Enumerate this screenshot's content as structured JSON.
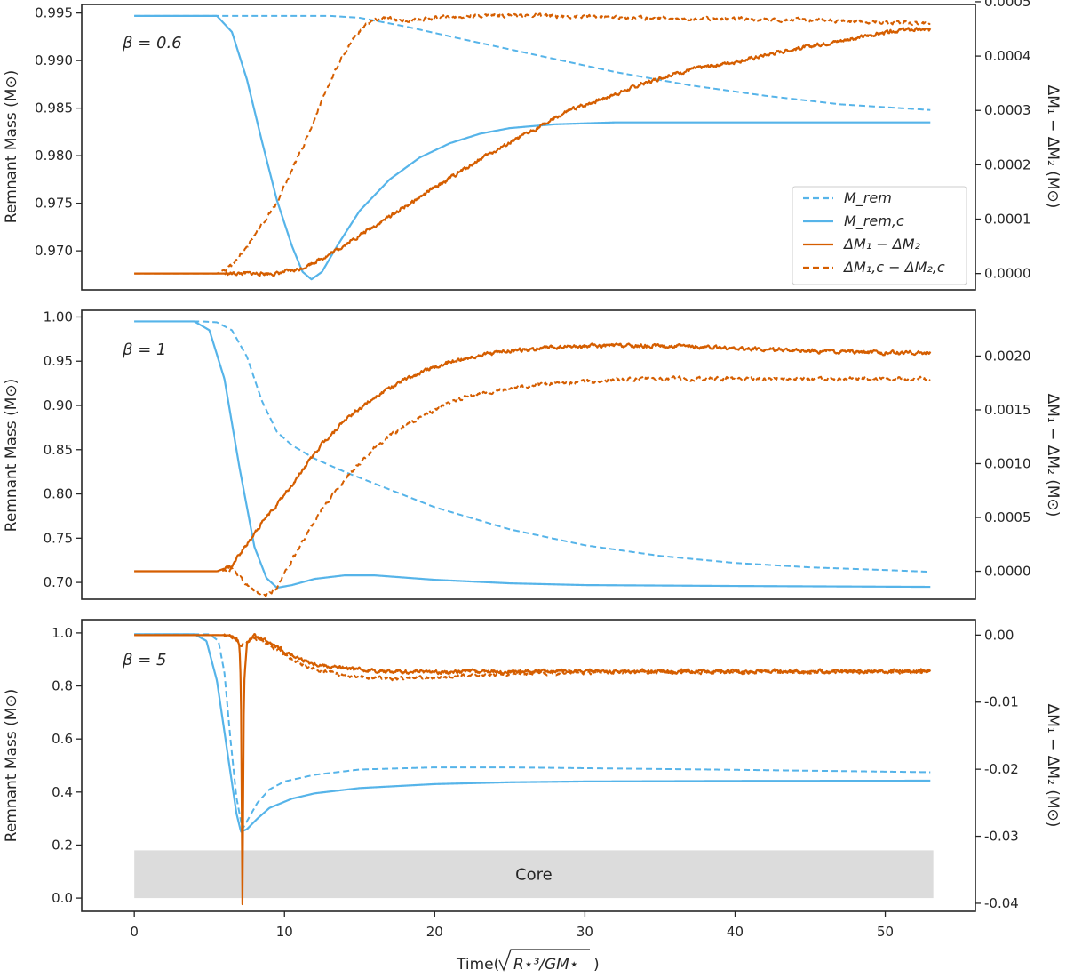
{
  "figure": {
    "xlabel": "Time(√ R⋆³/GM⋆ )",
    "xlabel_parts": {
      "prefix": "Time(",
      "radicand": "R⋆³/GM⋆",
      "suffix": ")"
    },
    "colors": {
      "blue": "#56B4E9",
      "orange": "#D55E00",
      "core": "#DCDCDC",
      "axis": "#262626"
    }
  },
  "chart_data": [
    {
      "type": "line",
      "panel": "beta-0.6",
      "annotation": "β = 0.6",
      "ylabel": "Remnant Mass (M⊙)",
      "ylabel_right": "ΔM₁ − ΔM₂ (M⊙)",
      "xlim": [
        -3.5,
        56
      ],
      "ylim": [
        0.9659,
        0.9959
      ],
      "ylim_right": [
        -3e-05,
        0.000495
      ],
      "yticks": [
        0.97,
        0.975,
        0.98,
        0.985,
        0.99,
        0.995
      ],
      "ytick_labels": [
        "0.970",
        "0.975",
        "0.980",
        "0.985",
        "0.990",
        "0.995"
      ],
      "yticks_right": [
        0.0,
        0.0001,
        0.0002,
        0.0003,
        0.0004,
        0.0005
      ],
      "ytick_right_labels": [
        "0.0000",
        "0.0001",
        "0.0002",
        "0.0003",
        "0.0004",
        "0.0005"
      ],
      "legend": {
        "placement": "right",
        "entries": [
          "M_rem",
          "M_rem,c",
          "ΔM₁ − ΔM₂",
          "ΔM₁,c − ΔM₂,c"
        ]
      },
      "series": [
        {
          "name": "M_rem",
          "axis": "left",
          "color": "#56B4E9",
          "dash": true,
          "x": [
            0,
            5,
            10,
            13,
            15,
            18,
            22,
            27,
            32,
            37,
            42,
            47,
            53
          ],
          "y": [
            0.9947,
            0.9947,
            0.9947,
            0.9947,
            0.9945,
            0.9936,
            0.9922,
            0.9905,
            0.9888,
            0.9874,
            0.9863,
            0.9854,
            0.9848
          ]
        },
        {
          "name": "M_rem,c",
          "axis": "left",
          "color": "#56B4E9",
          "dash": false,
          "x": [
            0,
            5.5,
            6.5,
            7.5,
            8.5,
            9.5,
            10.5,
            11.2,
            11.8,
            12.5,
            13.5,
            15,
            17,
            19,
            21,
            23,
            25,
            28,
            32,
            40,
            53
          ],
          "y": [
            0.9947,
            0.9947,
            0.993,
            0.988,
            0.9815,
            0.9753,
            0.9705,
            0.9678,
            0.967,
            0.9678,
            0.9705,
            0.9742,
            0.9775,
            0.9798,
            0.9813,
            0.9823,
            0.9829,
            0.9833,
            0.9835,
            0.9835,
            0.9835
          ]
        },
        {
          "name": "ΔM₁ − ΔM₂",
          "axis": "right",
          "color": "#D55E00",
          "dash": false,
          "x": [
            0,
            9.5,
            11,
            13,
            15,
            17,
            19,
            21,
            23,
            25,
            27,
            29,
            31,
            33,
            35,
            37,
            39,
            41,
            43,
            45,
            47,
            49,
            51,
            53
          ],
          "y": [
            0.0,
            0.0,
            8e-06,
            3.5e-05,
            7e-05,
            0.000105,
            0.00014,
            0.000175,
            0.00021,
            0.00024,
            0.00027,
            0.0003,
            0.00032,
            0.00034,
            0.00036,
            0.000375,
            0.000385,
            0.000395,
            0.000408,
            0.000418,
            0.000428,
            0.000438,
            0.000448,
            0.000448
          ]
        },
        {
          "name": "ΔM₁,c − ΔM₂,c",
          "axis": "right",
          "color": "#D55E00",
          "dash": true,
          "x": [
            0,
            5.5,
            6.5,
            7.5,
            8.5,
            9.5,
            10.5,
            11.5,
            12.5,
            13.5,
            14.5,
            15.5,
            16.5,
            18,
            20,
            23,
            26,
            30,
            35,
            40,
            45,
            50,
            53
          ],
          "y": [
            0.0,
            0.0,
            1.5e-05,
            5e-05,
            9e-05,
            0.00013,
            0.00019,
            0.00025,
            0.00032,
            0.00038,
            0.00043,
            0.00046,
            0.00047,
            0.000465,
            0.00047,
            0.000475,
            0.000475,
            0.000472,
            0.00047,
            0.000468,
            0.000466,
            0.000463,
            0.00046
          ]
        }
      ]
    },
    {
      "type": "line",
      "panel": "beta-1",
      "annotation": "β = 1",
      "ylabel": "Remnant Mass (M⊙)",
      "ylabel_right": "ΔM₁ − ΔM₂ (M⊙)",
      "xlim": [
        -3.5,
        56
      ],
      "ylim": [
        0.681,
        1.0075
      ],
      "ylim_right": [
        -0.00026,
        0.002425
      ],
      "yticks": [
        0.7,
        0.75,
        0.8,
        0.85,
        0.9,
        0.95,
        1.0
      ],
      "ytick_labels": [
        "0.70",
        "0.75",
        "0.80",
        "0.85",
        "0.90",
        "0.95",
        "1.00"
      ],
      "yticks_right": [
        0.0,
        0.0005,
        0.001,
        0.0015,
        0.002
      ],
      "ytick_right_labels": [
        "0.0000",
        "0.0005",
        "0.0010",
        "0.0015",
        "0.0020"
      ],
      "series": [
        {
          "name": "M_rem",
          "axis": "left",
          "color": "#56B4E9",
          "dash": true,
          "x": [
            0,
            4.5,
            5.5,
            6.5,
            7.5,
            8.5,
            9.5,
            10.5,
            12,
            14,
            17,
            20,
            25,
            30,
            35,
            40,
            45,
            50,
            53
          ],
          "y": [
            0.995,
            0.995,
            0.994,
            0.985,
            0.955,
            0.905,
            0.87,
            0.855,
            0.84,
            0.825,
            0.805,
            0.785,
            0.76,
            0.742,
            0.73,
            0.722,
            0.717,
            0.714,
            0.712
          ]
        },
        {
          "name": "M_rem,c",
          "axis": "left",
          "color": "#56B4E9",
          "dash": false,
          "x": [
            0,
            4,
            5,
            6,
            7,
            8,
            8.8,
            9.5,
            10.5,
            12,
            14,
            16,
            20,
            25,
            30,
            40,
            53
          ],
          "y": [
            0.995,
            0.995,
            0.985,
            0.93,
            0.83,
            0.74,
            0.705,
            0.694,
            0.697,
            0.704,
            0.708,
            0.708,
            0.703,
            0.699,
            0.697,
            0.696,
            0.695
          ]
        },
        {
          "name": "ΔM₁ − ΔM₂",
          "axis": "right",
          "color": "#D55E00",
          "dash": false,
          "x": [
            0,
            5.5,
            6.5,
            7.5,
            8.5,
            9.5,
            10.5,
            11.5,
            12.5,
            14,
            16,
            18,
            20,
            22,
            25,
            28,
            32,
            36,
            40,
            45,
            50,
            53
          ],
          "y": [
            0.0,
            0.0,
            5e-05,
            0.00025,
            0.00045,
            0.00062,
            0.0008,
            0.001,
            0.00118,
            0.0014,
            0.00162,
            0.00178,
            0.0019,
            0.00198,
            0.00205,
            0.00208,
            0.0021,
            0.00209,
            0.00207,
            0.00205,
            0.00203,
            0.00203
          ]
        },
        {
          "name": "ΔM₁,c − ΔM₂,c",
          "axis": "right",
          "color": "#D55E00",
          "dash": true,
          "x": [
            0,
            5.5,
            6.5,
            7.5,
            8.3,
            8.8,
            9.5,
            10.5,
            11.5,
            12.5,
            14,
            16,
            18,
            20,
            22,
            25,
            28,
            32,
            36,
            40,
            45,
            50,
            53
          ],
          "y": [
            0.0,
            0.0,
            1.5e-05,
            -0.00012,
            -0.00022,
            -0.00023,
            -0.00015,
            0.0001,
            0.00035,
            0.00058,
            0.00085,
            0.00115,
            0.00135,
            0.0015,
            0.00162,
            0.0017,
            0.00175,
            0.00178,
            0.00179,
            0.00179,
            0.00179,
            0.00179,
            0.00179
          ]
        }
      ]
    },
    {
      "type": "line",
      "panel": "beta-5",
      "annotation": "β = 5",
      "core_label": "Core",
      "core_region": {
        "x": [
          0,
          53.2
        ],
        "y": [
          0.0,
          0.18
        ]
      },
      "ylabel": "Remnant Mass (M⊙)",
      "ylabel_right": "ΔM₁ − ΔM₂ (M⊙)",
      "xlim": [
        -3.5,
        56
      ],
      "ylim": [
        -0.05,
        1.05
      ],
      "ylim_right": [
        -0.0412,
        0.0023
      ],
      "yticks": [
        0.0,
        0.2,
        0.4,
        0.6,
        0.8,
        1.0
      ],
      "ytick_labels": [
        "0.0",
        "0.2",
        "0.4",
        "0.6",
        "0.8",
        "1.0"
      ],
      "yticks_right": [
        0.0,
        -0.01,
        -0.02,
        -0.03,
        -0.04
      ],
      "ytick_right_labels": [
        "0.00",
        "-0.01",
        "-0.02",
        "-0.03",
        "-0.04"
      ],
      "xticks": [
        0,
        10,
        20,
        30,
        40,
        50
      ],
      "xtick_labels": [
        "0",
        "10",
        "20",
        "30",
        "40",
        "50"
      ],
      "series": [
        {
          "name": "M_rem",
          "axis": "left",
          "color": "#56B4E9",
          "dash": true,
          "x": [
            0,
            5,
            5.6,
            6.0,
            6.4,
            6.8,
            7.2,
            7.6,
            8.2,
            9,
            10,
            12,
            15,
            20,
            25,
            30,
            40,
            53
          ],
          "y": [
            0.995,
            0.995,
            0.97,
            0.85,
            0.6,
            0.38,
            0.26,
            0.3,
            0.36,
            0.41,
            0.44,
            0.465,
            0.485,
            0.493,
            0.493,
            0.49,
            0.484,
            0.475
          ]
        },
        {
          "name": "M_rem,c",
          "axis": "left",
          "color": "#56B4E9",
          "dash": false,
          "x": [
            0,
            4,
            4.8,
            5.5,
            6.2,
            6.8,
            7.1,
            7.5,
            8.2,
            9,
            10.5,
            12,
            15,
            20,
            25,
            30,
            40,
            53
          ],
          "y": [
            0.995,
            0.995,
            0.97,
            0.82,
            0.55,
            0.32,
            0.25,
            0.26,
            0.3,
            0.34,
            0.375,
            0.395,
            0.415,
            0.43,
            0.437,
            0.44,
            0.442,
            0.443
          ]
        },
        {
          "name": "ΔM₁ − ΔM₂",
          "axis": "right",
          "color": "#D55E00",
          "dash": false,
          "x": [
            0,
            6.3,
            6.8,
            7.0,
            7.1,
            7.2,
            7.3,
            7.5,
            8,
            9,
            10,
            11,
            12,
            14,
            17,
            20,
            25,
            30,
            40,
            53
          ],
          "y": [
            0.0,
            0.0,
            -0.0005,
            -0.0015,
            -0.008,
            -0.0405,
            -0.008,
            -0.001,
            -0.0002,
            -0.0012,
            -0.0025,
            -0.0035,
            -0.0043,
            -0.005,
            -0.0054,
            -0.0055,
            -0.0054,
            -0.0054,
            -0.0054,
            -0.0054
          ]
        },
        {
          "name": "ΔM₁,c − ΔM₂,c",
          "axis": "right",
          "color": "#D55E00",
          "dash": true,
          "x": [
            0,
            6.3,
            6.8,
            7.1,
            7.5,
            8,
            9,
            10,
            11,
            12,
            14,
            17,
            20,
            25,
            30,
            40,
            53
          ],
          "y": [
            0.0,
            0.0,
            -0.0008,
            -0.0015,
            -0.0008,
            -0.0005,
            -0.0015,
            -0.003,
            -0.0042,
            -0.0052,
            -0.006,
            -0.0065,
            -0.0063,
            -0.0058,
            -0.0055,
            -0.0055,
            -0.0055
          ]
        }
      ]
    }
  ]
}
